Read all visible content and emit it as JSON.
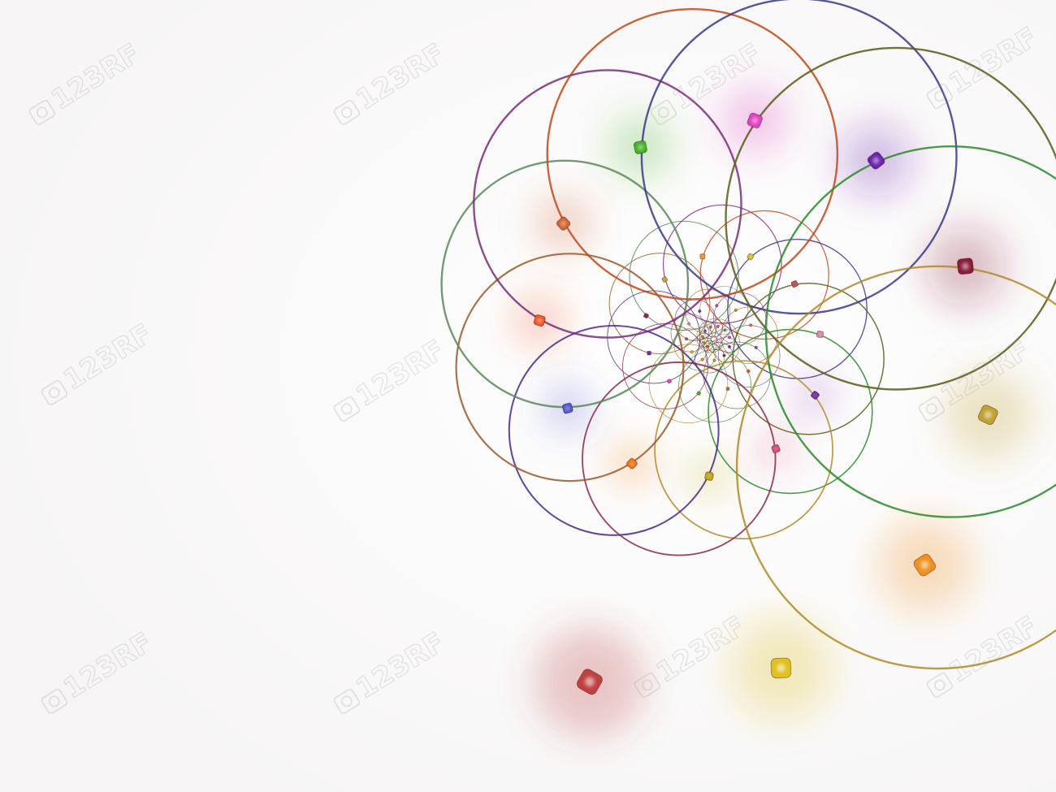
{
  "image": {
    "subject": "fractal-spiral-of-colored-circles-with-glowing-beads",
    "background_color": "#fdfcfc",
    "watermark_text": "123RF",
    "ring_colors": [
      "#7a2b7a",
      "#c04a1a",
      "#3a3a8a",
      "#5a5a1a",
      "#2a8a2a",
      "#b08a2a",
      "#8a2a4a",
      "#4a2a8a",
      "#9a5a2a",
      "#5a8a5a"
    ],
    "bead_colors": [
      "#d0406a",
      "#b8a000",
      "#f07010",
      "#5050d0",
      "#f05020",
      "#d0602a",
      "#40b020",
      "#e040c0",
      "#6a20b0",
      "#8a1a3a",
      "#c0a030",
      "#f09020",
      "#e0c020",
      "#c04040",
      "#e080a0",
      "#7020a0"
    ]
  }
}
